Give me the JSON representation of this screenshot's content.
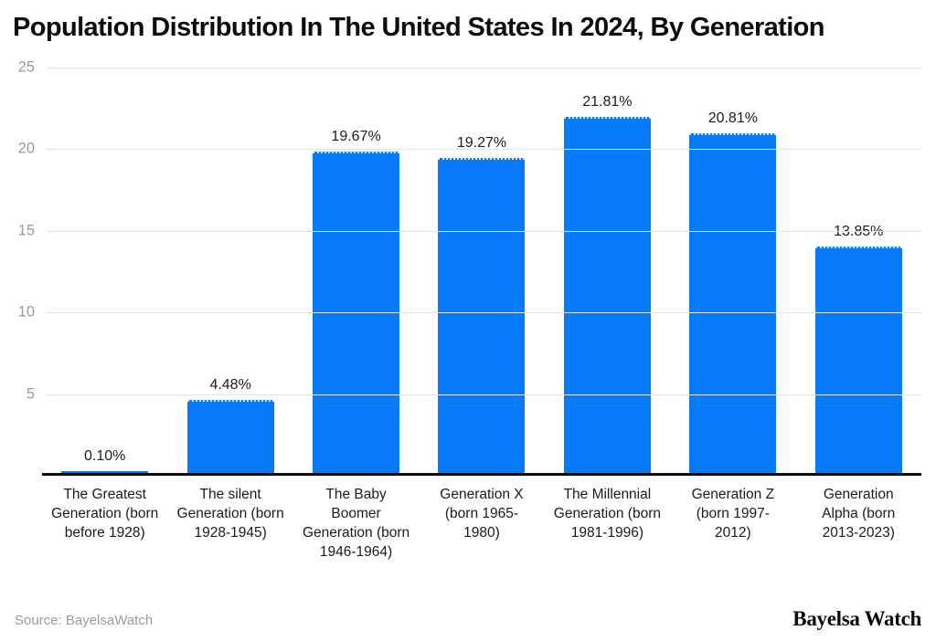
{
  "header": {
    "title": "Population Distribution In The United States In 2024, By Generation"
  },
  "chart_data": {
    "type": "bar",
    "title": "Population Distribution In The United States In 2024, By Generation",
    "categories": [
      "The Greatest Generation (born before 1928)",
      "The silent Generation (born 1928-1945)",
      "The Baby Boomer Generation (born 1946-1964)",
      "Generation X (born 1965-1980)",
      "The Millennial Generation (born 1981-1996)",
      "Generation Z (born 1997-2012)",
      "Generation Alpha (born 2013-2023)"
    ],
    "values": [
      0.1,
      4.48,
      19.67,
      19.27,
      21.81,
      20.81,
      13.85
    ],
    "value_labels": [
      "0.10%",
      "4.48%",
      "19.67%",
      "19.27%",
      "21.81%",
      "20.81%",
      "13.85%"
    ],
    "xlabel": "",
    "ylabel": "",
    "ylim": [
      0,
      25
    ],
    "yticks": [
      5,
      10,
      15,
      20,
      25
    ],
    "grid": "horizontal",
    "legend": "none",
    "bar_color": "#077bf7",
    "gridline_color": "#e2e2e2",
    "axis_line_color": "#0a0a0a"
  },
  "footer": {
    "source": "Source: BayelsaWatch",
    "brand": "Bayelsa Watch"
  }
}
